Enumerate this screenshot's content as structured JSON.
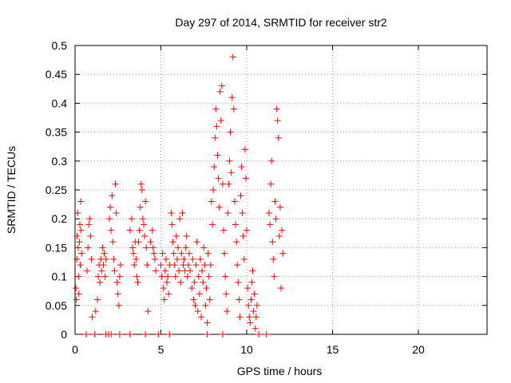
{
  "chart_data": {
    "type": "scatter",
    "title": "Day 297 of 2014, SRMTID for receiver str2",
    "xlabel": "GPS time / hours",
    "ylabel": "SRMTID / TECUs",
    "xlim": [
      0,
      24
    ],
    "ylim": [
      0,
      0.5
    ],
    "x_ticks": [
      "0",
      "5",
      "10",
      "15",
      "20"
    ],
    "y_ticks": [
      "0",
      "0.05",
      "0.1",
      "0.15",
      "0.2",
      "0.25",
      "0.3",
      "0.35",
      "0.4",
      "0.45",
      "0.5"
    ],
    "grid": true,
    "marker": "plus",
    "series_color": "#ff0000",
    "series": [
      {
        "points": [
          [
            0.05,
            0.08
          ],
          [
            0.08,
            0.06
          ],
          [
            0.1,
            0.13
          ],
          [
            0.12,
            0.17
          ],
          [
            0.15,
            0.21
          ],
          [
            0.18,
            0.15
          ],
          [
            0.2,
            0.1
          ],
          [
            0.22,
            0.07
          ],
          [
            0.25,
            0.16
          ],
          [
            0.28,
            0.19
          ],
          [
            0.3,
            0.12
          ],
          [
            0.33,
            0.23
          ],
          [
            0.35,
            0.18
          ],
          [
            0.38,
            0.14
          ],
          [
            0.7,
            0.11
          ],
          [
            0.75,
            0.15
          ],
          [
            0.8,
            0.19
          ],
          [
            0.85,
            0.2
          ],
          [
            0.9,
            0.17
          ],
          [
            0.95,
            0.13
          ],
          [
            1.0,
            0.03
          ],
          [
            1.2,
            0.04
          ],
          [
            1.3,
            0.06
          ],
          [
            1.35,
            0.1
          ],
          [
            1.4,
            0.12
          ],
          [
            1.45,
            0.09
          ],
          [
            1.5,
            0.13
          ],
          [
            1.55,
            0.11
          ],
          [
            1.6,
            0.15
          ],
          [
            1.65,
            0.12
          ],
          [
            1.7,
            0.14
          ],
          [
            1.75,
            0.1
          ],
          [
            1.8,
            0.13
          ],
          [
            2.0,
            0.2
          ],
          [
            2.05,
            0.22
          ],
          [
            2.1,
            0.18
          ],
          [
            2.15,
            0.24
          ],
          [
            2.2,
            0.16
          ],
          [
            2.25,
            0.13
          ],
          [
            2.3,
            0.11
          ],
          [
            2.35,
            0.26
          ],
          [
            2.4,
            0.21
          ],
          [
            2.45,
            0.09
          ],
          [
            2.5,
            0.07
          ],
          [
            2.55,
            0.05
          ],
          [
            2.6,
            0.1
          ],
          [
            2.65,
            0.12
          ],
          [
            3.2,
            0.18
          ],
          [
            3.3,
            0.2
          ],
          [
            3.35,
            0.15
          ],
          [
            3.4,
            0.14
          ],
          [
            3.45,
            0.12
          ],
          [
            3.5,
            0.16
          ],
          [
            3.55,
            0.13
          ],
          [
            3.6,
            0.1
          ],
          [
            3.65,
            0.09
          ],
          [
            3.7,
            0.16
          ],
          [
            3.75,
            0.18
          ],
          [
            3.8,
            0.22
          ],
          [
            3.85,
            0.26
          ],
          [
            3.9,
            0.25
          ],
          [
            3.95,
            0.2
          ],
          [
            4.0,
            0.19
          ],
          [
            4.05,
            0.17
          ],
          [
            4.1,
            0.23
          ],
          [
            4.15,
            0.15
          ],
          [
            4.2,
            0.12
          ],
          [
            4.25,
            0.04
          ],
          [
            4.4,
            0.16
          ],
          [
            4.5,
            0.18
          ],
          [
            4.55,
            0.15
          ],
          [
            4.6,
            0.14
          ],
          [
            4.65,
            0.13
          ],
          [
            4.7,
            0.11
          ],
          [
            5.0,
            0.12
          ],
          [
            5.05,
            0.1
          ],
          [
            5.1,
            0.14
          ],
          [
            5.15,
            0.08
          ],
          [
            5.2,
            0.06
          ],
          [
            5.25,
            0.11
          ],
          [
            5.3,
            0.13
          ],
          [
            5.35,
            0.09
          ],
          [
            5.4,
            0.1
          ],
          [
            5.45,
            0.07
          ],
          [
            5.5,
            0.12
          ],
          [
            5.6,
            0.21
          ],
          [
            5.65,
            0.19
          ],
          [
            5.7,
            0.16
          ],
          [
            5.75,
            0.14
          ],
          [
            5.8,
            0.12
          ],
          [
            5.85,
            0.1
          ],
          [
            5.9,
            0.17
          ],
          [
            5.95,
            0.13
          ],
          [
            6.0,
            0.15
          ],
          [
            6.05,
            0.11
          ],
          [
            6.1,
            0.2
          ],
          [
            6.15,
            0.09
          ],
          [
            6.2,
            0.14
          ],
          [
            6.25,
            0.21
          ],
          [
            6.3,
            0.12
          ],
          [
            6.35,
            0.13
          ],
          [
            6.4,
            0.11
          ],
          [
            6.45,
            0.15
          ],
          [
            6.5,
            0.17
          ],
          [
            6.55,
            0.1
          ],
          [
            6.6,
            0.12
          ],
          [
            6.65,
            0.14
          ],
          [
            6.7,
            0.11
          ],
          [
            6.8,
            0.08
          ],
          [
            6.85,
            0.13
          ],
          [
            6.9,
            0.06
          ],
          [
            6.95,
            0.09
          ],
          [
            7.0,
            0.05
          ],
          [
            7.05,
            0.12
          ],
          [
            7.1,
            0.16
          ],
          [
            7.15,
            0.04
          ],
          [
            7.2,
            0.1
          ],
          [
            7.25,
            0.07
          ],
          [
            7.3,
            0.13
          ],
          [
            7.35,
            0.03
          ],
          [
            7.4,
            0.11
          ],
          [
            7.45,
            0.09
          ],
          [
            7.5,
            0.15
          ],
          [
            7.55,
            0.12
          ],
          [
            7.6,
            0.05
          ],
          [
            7.65,
            0.08
          ],
          [
            7.7,
            0.02
          ],
          [
            7.75,
            0.14
          ],
          [
            7.8,
            0.1
          ],
          [
            7.85,
            0.06
          ],
          [
            7.9,
            0.12
          ],
          [
            7.95,
            0.23
          ],
          [
            8.0,
            0.19
          ],
          [
            8.05,
            0.25
          ],
          [
            8.1,
            0.29
          ],
          [
            8.15,
            0.34
          ],
          [
            8.2,
            0.39
          ],
          [
            8.25,
            0.36
          ],
          [
            8.3,
            0.31
          ],
          [
            8.35,
            0.27
          ],
          [
            8.4,
            0.22
          ],
          [
            8.45,
            0.42
          ],
          [
            8.5,
            0.37
          ],
          [
            8.55,
            0.43
          ],
          [
            8.6,
            0.26
          ],
          [
            8.65,
            0.18
          ],
          [
            8.7,
            0.14
          ],
          [
            8.75,
            0.1
          ],
          [
            8.8,
            0.07
          ],
          [
            8.85,
            0.04
          ],
          [
            8.9,
            0.21
          ],
          [
            8.95,
            0.26
          ],
          [
            9.0,
            0.3
          ],
          [
            9.05,
            0.35
          ],
          [
            9.1,
            0.28
          ],
          [
            9.15,
            0.41
          ],
          [
            9.2,
            0.48
          ],
          [
            9.25,
            0.39
          ],
          [
            9.3,
            0.23
          ],
          [
            9.35,
            0.19
          ],
          [
            9.4,
            0.16
          ],
          [
            9.45,
            0.12
          ],
          [
            9.5,
            0.09
          ],
          [
            9.55,
            0.06
          ],
          [
            9.6,
            0.03
          ],
          [
            9.65,
            0.24
          ],
          [
            9.7,
            0.29
          ],
          [
            9.75,
            0.21
          ],
          [
            9.8,
            0.17
          ],
          [
            9.85,
            0.13
          ],
          [
            9.9,
            0.32
          ],
          [
            9.95,
            0.27
          ],
          [
            10.0,
            0.18
          ],
          [
            10.05,
            0.08
          ],
          [
            10.1,
            0.05
          ],
          [
            10.15,
            0.03
          ],
          [
            10.2,
            0.02
          ],
          [
            10.25,
            0.06
          ],
          [
            10.3,
            0.09
          ],
          [
            10.35,
            0.11
          ],
          [
            10.4,
            0.04
          ],
          [
            10.45,
            0.07
          ],
          [
            10.5,
            0.01
          ],
          [
            10.55,
            0.03
          ],
          [
            10.6,
            0.05
          ],
          [
            11.3,
            0.21
          ],
          [
            11.35,
            0.19
          ],
          [
            11.4,
            0.26
          ],
          [
            11.45,
            0.3
          ],
          [
            11.5,
            0.16
          ],
          [
            11.55,
            0.13
          ],
          [
            11.6,
            0.1
          ],
          [
            11.65,
            0.23
          ],
          [
            11.7,
            0.2
          ],
          [
            11.75,
            0.39
          ],
          [
            11.8,
            0.37
          ],
          [
            11.85,
            0.34
          ],
          [
            11.9,
            0.17
          ],
          [
            11.95,
            0.22
          ],
          [
            12.0,
            0.08
          ],
          [
            12.05,
            0.18
          ],
          [
            12.1,
            0.14
          ]
        ]
      },
      {
        "points": [
          [
            0.65,
            0
          ],
          [
            1.15,
            0
          ],
          [
            1.8,
            0
          ],
          [
            1.95,
            0
          ],
          [
            2.1,
            0
          ],
          [
            2.6,
            0
          ],
          [
            3.2,
            0
          ],
          [
            4.1,
            0
          ],
          [
            4.85,
            0
          ],
          [
            5.5,
            0
          ],
          [
            7.7,
            0
          ],
          [
            8.6,
            0
          ],
          [
            10.7,
            0
          ],
          [
            11.15,
            0
          ]
        ]
      }
    ]
  }
}
